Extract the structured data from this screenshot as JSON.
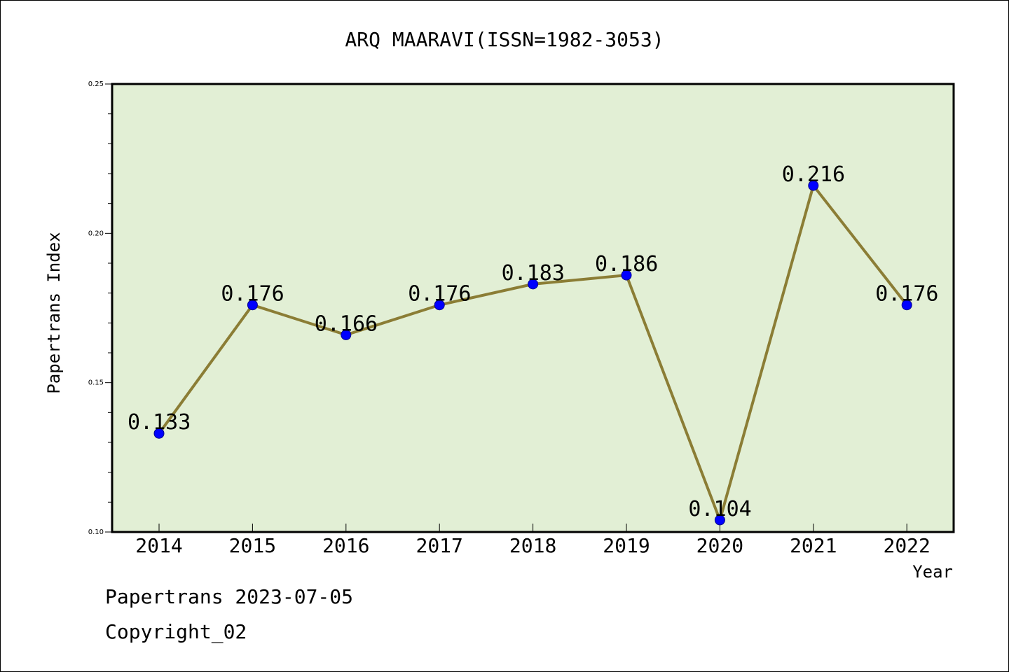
{
  "chart_data": {
    "type": "line",
    "title": "ARQ MAARAVI(ISSN=1982-3053)",
    "xlabel": "Year",
    "ylabel": "Papertrans Index",
    "categories": [
      "2014",
      "2015",
      "2016",
      "2017",
      "2018",
      "2019",
      "2020",
      "2021",
      "2022"
    ],
    "series": [
      {
        "values": [
          0.133,
          0.176,
          0.166,
          0.176,
          0.183,
          0.186,
          0.104,
          0.216,
          0.176
        ],
        "data_labels": [
          "0.133",
          "0.176",
          "0.166",
          "0.176",
          "0.183",
          "0.186",
          "0.104",
          "0.216",
          "0.176"
        ]
      }
    ],
    "ylim": [
      0.1,
      0.25
    ],
    "yticks": [
      "0.10",
      "0.15",
      "0.20",
      "0.25"
    ],
    "grid": false,
    "plot_background": "#e2efd5",
    "line_color": "#8b7d35",
    "marker_color": "#0000ff"
  },
  "footer": {
    "line1": "Papertrans 2023-07-05",
    "line2": "Copyright_02"
  }
}
